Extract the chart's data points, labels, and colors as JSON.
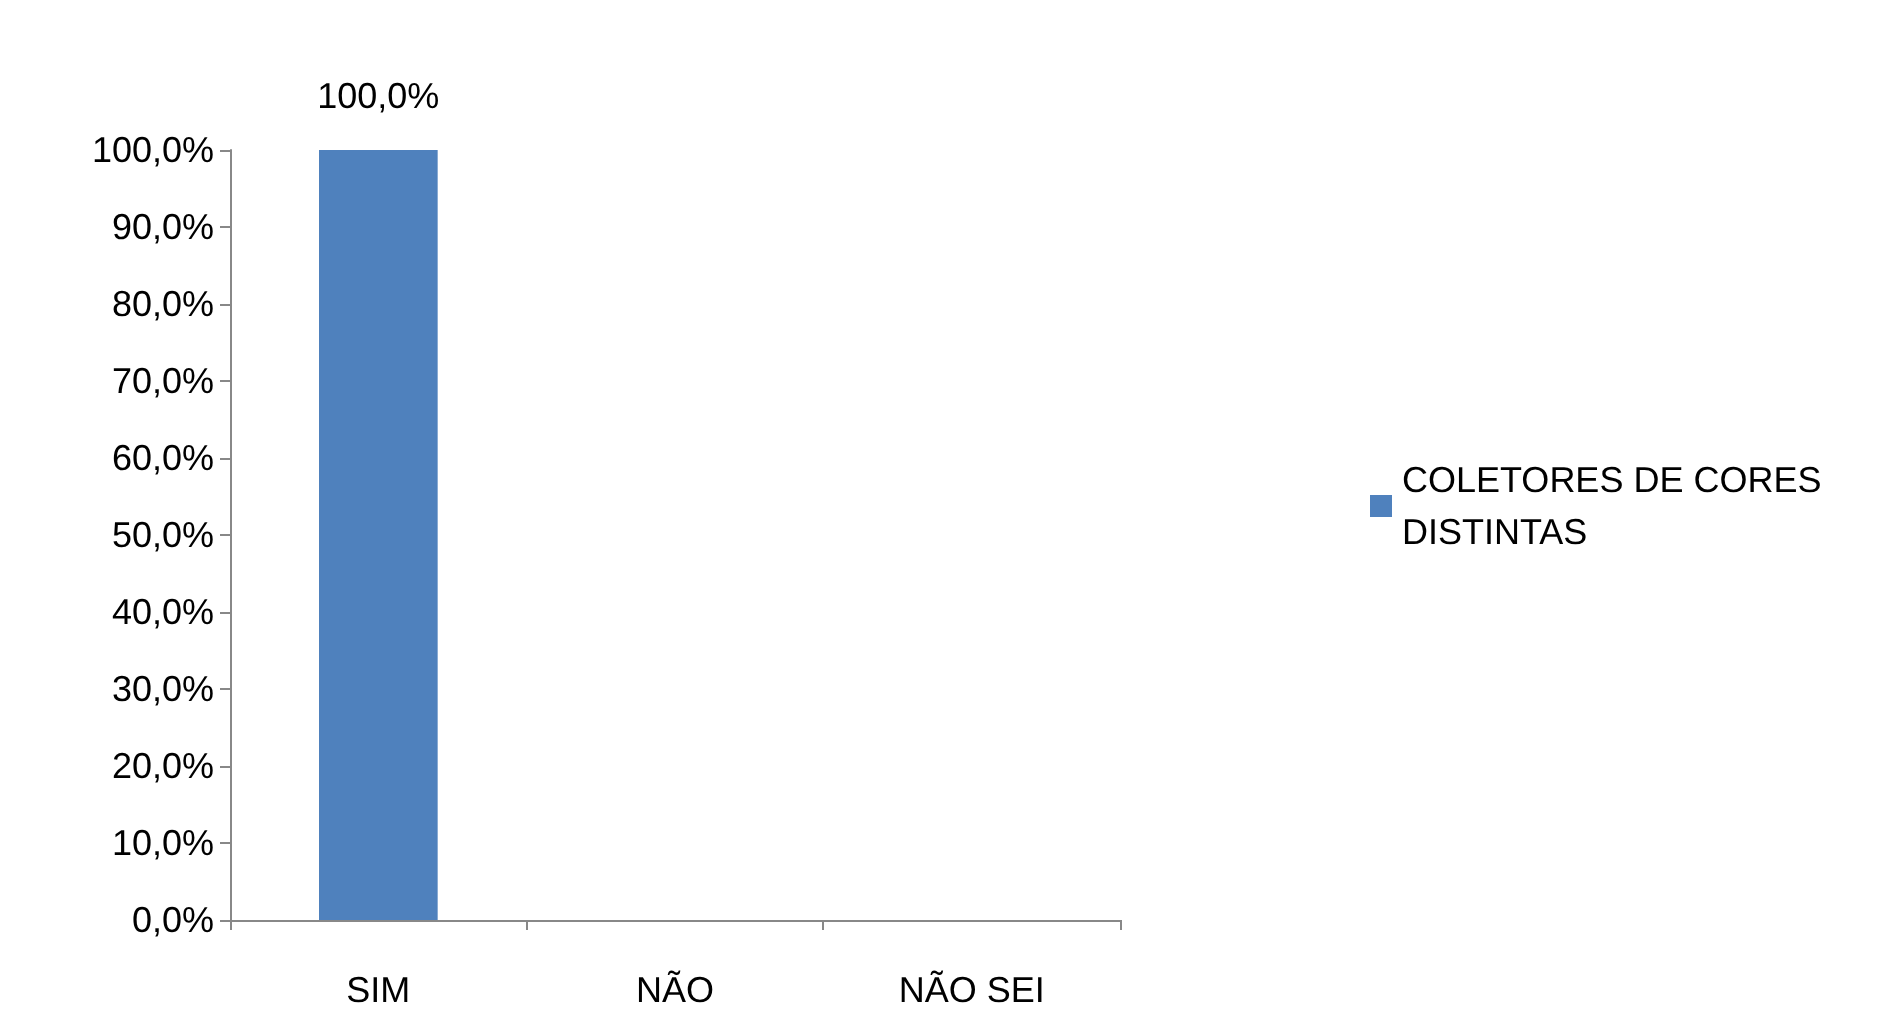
{
  "chart_data": {
    "type": "bar",
    "categories": [
      "SIM",
      "NÃO",
      "NÃO SEI"
    ],
    "series": [
      {
        "name": "COLETORES DE CORES DISTINTAS",
        "color": "#4f81bd",
        "values": [
          100,
          0,
          0
        ],
        "value_labels": [
          "100,0%",
          null,
          null
        ]
      }
    ],
    "ylim": [
      0,
      100
    ],
    "yticks": [
      {
        "value": 0,
        "label": "0,0%"
      },
      {
        "value": 10,
        "label": "10,0%"
      },
      {
        "value": 20,
        "label": "20,0%"
      },
      {
        "value": 30,
        "label": "30,0%"
      },
      {
        "value": 40,
        "label": "40,0%"
      },
      {
        "value": 50,
        "label": "50,0%"
      },
      {
        "value": 60,
        "label": "60,0%"
      },
      {
        "value": 70,
        "label": "70,0%"
      },
      {
        "value": 80,
        "label": "80,0%"
      },
      {
        "value": 90,
        "label": "90,0%"
      },
      {
        "value": 100,
        "label": "100,0%"
      }
    ],
    "grid": false,
    "legend": "right"
  }
}
